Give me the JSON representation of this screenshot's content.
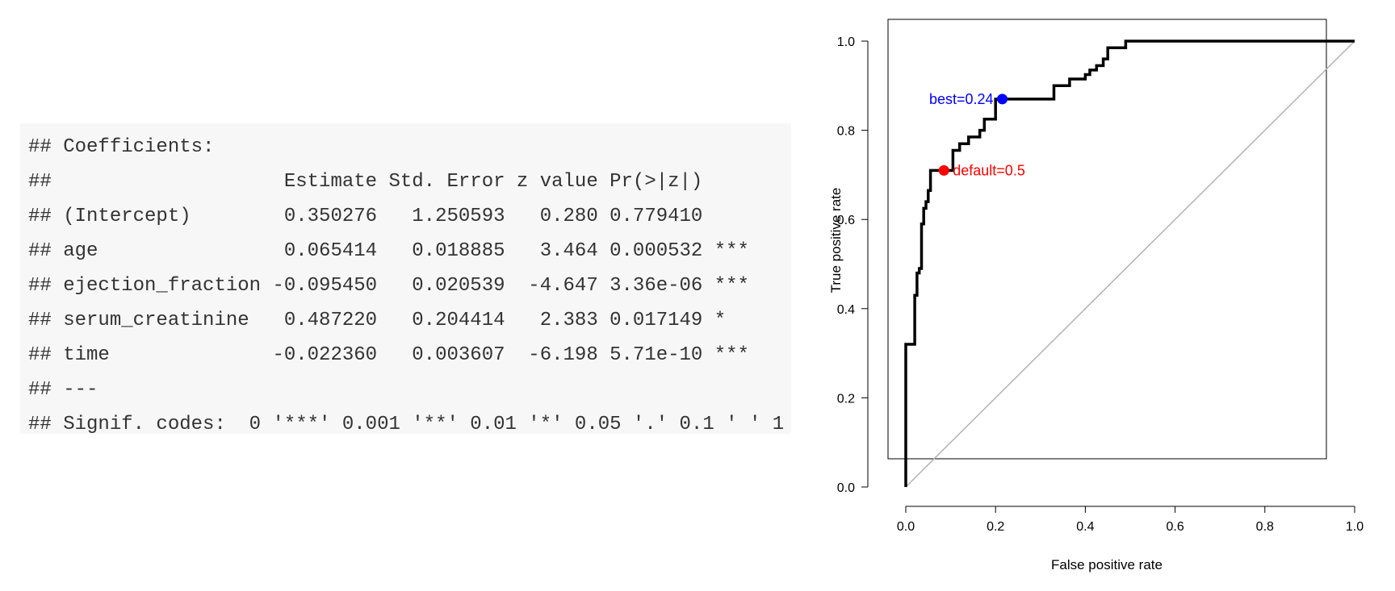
{
  "console": {
    "lines": [
      "## Coefficients:",
      "##                    Estimate Std. Error z value Pr(>|z|)    ",
      "## (Intercept)        0.350276   1.250593   0.280 0.779410    ",
      "## age                0.065414   0.018885   3.464 0.000532 ***",
      "## ejection_fraction -0.095450   0.020539  -4.647 3.36e-06 ***",
      "## serum_creatinine   0.487220   0.204414   2.383 0.017149 *  ",
      "## time              -0.022360   0.003607  -6.198 5.71e-10 ***",
      "## ---",
      "## Signif. codes:  0 '***' 0.001 '**' 0.01 '*' 0.05 '.' 0.1 ' ' 1"
    ]
  },
  "chart_data": {
    "type": "line",
    "title": "",
    "xlabel": "False positive rate",
    "ylabel": "True positive rate",
    "xlim": [
      0,
      1
    ],
    "ylim": [
      0,
      1
    ],
    "xticks": [
      "0.0",
      "0.2",
      "0.4",
      "0.6",
      "0.8",
      "1.0"
    ],
    "yticks": [
      "0.0",
      "0.2",
      "0.4",
      "0.6",
      "0.8",
      "1.0"
    ],
    "grid": false,
    "line_color": "#000000",
    "diagonal_color": "#b3b3b3",
    "roc_curve": {
      "x": [
        0,
        0,
        0.0,
        0.02,
        0.02,
        0.02,
        0.025,
        0.025,
        0.03,
        0.03,
        0.035,
        0.035,
        0.04,
        0.04,
        0.045,
        0.045,
        0.05,
        0.05,
        0.055,
        0.055,
        0.06,
        0.06,
        0.085,
        0.085,
        0.105,
        0.105,
        0.12,
        0.12,
        0.14,
        0.14,
        0.165,
        0.165,
        0.175,
        0.175,
        0.2,
        0.2,
        0.215,
        0.215,
        0.33,
        0.33,
        0.365,
        0.365,
        0.4,
        0.4,
        0.41,
        0.41,
        0.425,
        0.425,
        0.44,
        0.44,
        0.45,
        0.45,
        0.49,
        0.49,
        1.0
      ],
      "y": [
        0,
        0.32,
        0.32,
        0.32,
        0.43,
        0.43,
        0.43,
        0.48,
        0.48,
        0.49,
        0.49,
        0.59,
        0.59,
        0.625,
        0.625,
        0.64,
        0.64,
        0.665,
        0.665,
        0.71,
        0.71,
        0.71,
        0.71,
        0.71,
        0.71,
        0.755,
        0.755,
        0.77,
        0.77,
        0.785,
        0.785,
        0.8,
        0.8,
        0.825,
        0.825,
        0.87,
        0.87,
        0.87,
        0.87,
        0.9,
        0.9,
        0.915,
        0.915,
        0.925,
        0.925,
        0.935,
        0.935,
        0.945,
        0.945,
        0.96,
        0.96,
        0.985,
        0.985,
        1.0,
        1.0
      ]
    },
    "points": [
      {
        "name": "best",
        "label": "best=0.24",
        "x": 0.215,
        "y": 0.87,
        "color": "#0000ff",
        "label_side": "left"
      },
      {
        "name": "default",
        "label": "default=0.5",
        "x": 0.085,
        "y": 0.71,
        "color": "#ff0000",
        "label_side": "right"
      }
    ]
  }
}
